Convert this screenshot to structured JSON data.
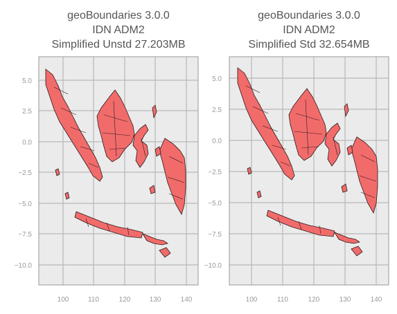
{
  "panels": [
    {
      "title_line1": "geoBoundaries 3.0.0",
      "title_line2": "IDN ADM2",
      "title_line3": "Simplified Unstd 27.203MB",
      "x_ticks": [
        "100",
        "110",
        "120",
        "130",
        "140"
      ],
      "y_ticks": [
        "5.0",
        "2.5",
        "0.0",
        "−2.5",
        "−5.0",
        "−7.5",
        "−10.0"
      ]
    },
    {
      "title_line1": "geoBoundaries 3.0.0",
      "title_line2": "IDN ADM2",
      "title_line3": "Simplified Std 32.654MB",
      "x_ticks": [
        "100",
        "110",
        "120",
        "130",
        "140"
      ],
      "y_ticks": [
        "5.0",
        "2.5",
        "0.0",
        "−2.5",
        "−5.0",
        "−7.5",
        "−10.0"
      ]
    }
  ],
  "colors": {
    "plot_bg": "#ebebeb",
    "grid": "#b8b8b8",
    "fill": "#f26b6b",
    "edge": "#2a1a1a"
  }
}
